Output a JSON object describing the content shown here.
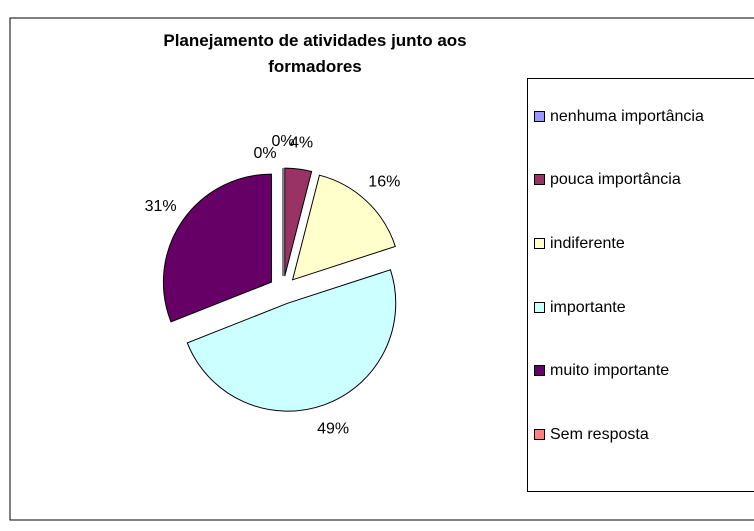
{
  "chart_data": {
    "type": "pie",
    "title": "Planejamento de atividades junto aos formadores",
    "categories": [
      "nenhuma importância",
      "pouca importância",
      "indiferente",
      "importante",
      "muito importante",
      "Sem resposta"
    ],
    "values": [
      0,
      4,
      16,
      49,
      31,
      0
    ],
    "value_labels": [
      "0%",
      "4%",
      "16%",
      "49%",
      "31%",
      "0%"
    ],
    "colors": [
      "#9999ff",
      "#993366",
      "#ffffcc",
      "#ccffff",
      "#660066",
      "#ff8080"
    ],
    "legend": "right"
  }
}
